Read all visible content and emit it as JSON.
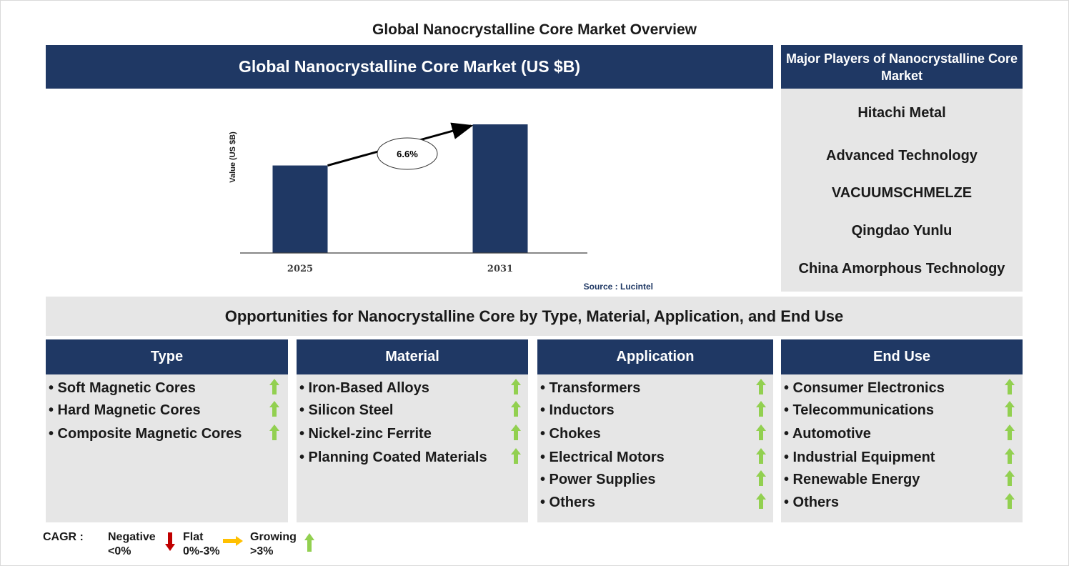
{
  "title": "Global Nanocrystalline Core Market Overview",
  "chart_header": "Global Nanocrystalline Core Market (US $B)",
  "chart_data": {
    "type": "bar",
    "categories": [
      "2025",
      "2031"
    ],
    "values": [
      1.0,
      1.47
    ],
    "ylabel": "Value (US $B)",
    "annotation": "6.6%",
    "source": "Source : Lucintel"
  },
  "players": {
    "header": "Major Players of Nanocrystalline Core Market",
    "items": [
      "Hitachi Metal",
      "Advanced Technology",
      "VACUUMSCHMELZE",
      "Qingdao Yunlu",
      "China Amorphous Technology"
    ]
  },
  "opportunities": {
    "title": "Opportunities for Nanocrystalline Core by Type, Material, Application, and End Use",
    "columns": [
      {
        "header": "Type",
        "items": [
          "Soft Magnetic Cores",
          "Hard Magnetic Cores",
          "Composite Magnetic Cores"
        ]
      },
      {
        "header": "Material",
        "items": [
          "Iron-Based Alloys",
          "Silicon Steel",
          "Nickel-zinc Ferrite",
          "Planning Coated Materials"
        ]
      },
      {
        "header": "Application",
        "items": [
          "Transformers",
          "Inductors",
          "Chokes",
          "Electrical Motors",
          "Power Supplies",
          "Others"
        ]
      },
      {
        "header": "End Use",
        "items": [
          "Consumer Electronics",
          "Telecommunications",
          "Automotive",
          "Industrial Equipment",
          "Renewable Energy",
          "Others"
        ]
      }
    ],
    "trend_icon": "growing-arrow-icon"
  },
  "legend": {
    "label": "CAGR :",
    "negative": {
      "name": "Negative",
      "range": "<0%",
      "color": "#c00000"
    },
    "flat": {
      "name": "Flat",
      "range": "0%-3%",
      "color": "#ffc000"
    },
    "growing": {
      "name": "Growing",
      "range": ">3%",
      "color": "#92d050"
    }
  },
  "colors": {
    "navy": "#1f3864",
    "panel_gray": "#e6e6e6",
    "growing": "#92d050"
  }
}
